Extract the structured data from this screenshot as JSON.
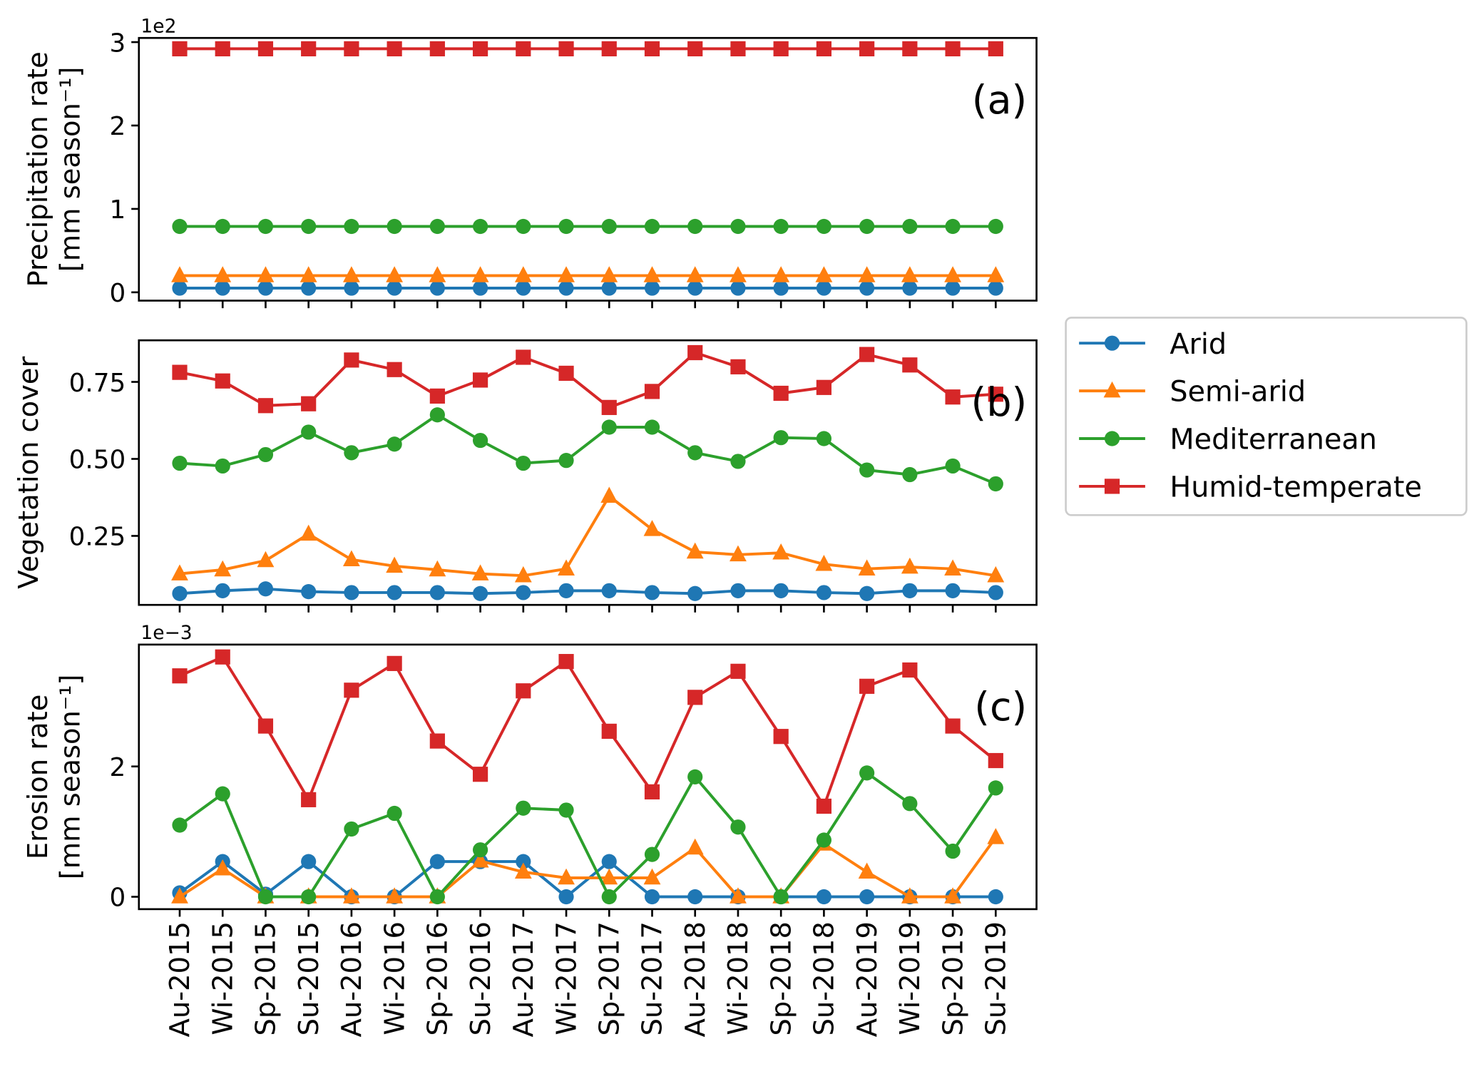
{
  "chart_data": [
    {
      "type": "line",
      "panel_label": "(a)",
      "ylabel": [
        "Precipitation rate",
        "[mm season⁻¹]"
      ],
      "offset_text": "1e2",
      "ylim": [
        -0.1,
        3.05
      ],
      "yticks": [
        0,
        1,
        2,
        3
      ],
      "ytick_labels": [
        "0",
        "1",
        "2",
        "3"
      ],
      "grid": false,
      "series": [
        {
          "name": "Arid",
          "values": [
            0.05,
            0.05,
            0.05,
            0.05,
            0.05,
            0.05,
            0.05,
            0.05,
            0.05,
            0.05,
            0.05,
            0.05,
            0.05,
            0.05,
            0.05,
            0.05,
            0.05,
            0.05,
            0.05,
            0.05
          ]
        },
        {
          "name": "Semi-arid",
          "values": [
            0.2,
            0.2,
            0.2,
            0.2,
            0.2,
            0.2,
            0.2,
            0.2,
            0.2,
            0.2,
            0.2,
            0.2,
            0.2,
            0.2,
            0.2,
            0.2,
            0.2,
            0.2,
            0.2,
            0.2
          ]
        },
        {
          "name": "Mediterranean",
          "values": [
            0.79,
            0.79,
            0.79,
            0.79,
            0.79,
            0.79,
            0.79,
            0.79,
            0.79,
            0.79,
            0.79,
            0.79,
            0.79,
            0.79,
            0.79,
            0.79,
            0.79,
            0.79,
            0.79,
            0.79
          ]
        },
        {
          "name": "Humid-temperate",
          "values": [
            2.92,
            2.92,
            2.92,
            2.92,
            2.92,
            2.92,
            2.92,
            2.92,
            2.92,
            2.92,
            2.92,
            2.92,
            2.92,
            2.92,
            2.92,
            2.92,
            2.92,
            2.92,
            2.92,
            2.92
          ]
        }
      ]
    },
    {
      "type": "line",
      "panel_label": "(b)",
      "ylabel": [
        "Vegetation cover"
      ],
      "offset_text": "",
      "ylim": [
        0.026,
        0.885
      ],
      "yticks": [
        0.25,
        0.5,
        0.75
      ],
      "ytick_labels": [
        "0.25",
        "0.50",
        "0.75"
      ],
      "grid": false,
      "series": [
        {
          "name": "Arid",
          "values": [
            0.063,
            0.072,
            0.078,
            0.069,
            0.066,
            0.066,
            0.066,
            0.063,
            0.066,
            0.072,
            0.072,
            0.066,
            0.063,
            0.072,
            0.072,
            0.066,
            0.063,
            0.072,
            0.072,
            0.066
          ]
        },
        {
          "name": "Semi-arid",
          "values": [
            0.127,
            0.14,
            0.17,
            0.256,
            0.173,
            0.152,
            0.14,
            0.127,
            0.121,
            0.143,
            0.379,
            0.271,
            0.198,
            0.189,
            0.195,
            0.158,
            0.143,
            0.149,
            0.143,
            0.121
          ]
        },
        {
          "name": "Mediterranean",
          "values": [
            0.486,
            0.477,
            0.514,
            0.587,
            0.52,
            0.548,
            0.643,
            0.56,
            0.486,
            0.495,
            0.603,
            0.603,
            0.52,
            0.492,
            0.569,
            0.566,
            0.464,
            0.449,
            0.477,
            0.419
          ]
        },
        {
          "name": "Humid-temperate",
          "values": [
            0.781,
            0.753,
            0.673,
            0.679,
            0.821,
            0.79,
            0.704,
            0.756,
            0.83,
            0.778,
            0.667,
            0.719,
            0.845,
            0.799,
            0.713,
            0.732,
            0.839,
            0.805,
            0.701,
            0.71
          ]
        }
      ]
    },
    {
      "type": "line",
      "panel_label": "(c)",
      "ylabel": [
        "Erosion rate",
        "[mm season⁻¹]"
      ],
      "offset_text": "1e−3",
      "ylim": [
        -0.19,
        3.87
      ],
      "yticks": [
        0,
        2
      ],
      "ytick_labels": [
        "0",
        "2"
      ],
      "grid": false,
      "series": [
        {
          "name": "Arid",
          "values": [
            0.06,
            0.54,
            0.04,
            0.54,
            0,
            0,
            0.54,
            0.54,
            0.54,
            0,
            0.54,
            0,
            0,
            0,
            0,
            0,
            0,
            0,
            0,
            0
          ]
        },
        {
          "name": "Semi-arid",
          "values": [
            0,
            0.43,
            0,
            0,
            0,
            0,
            0,
            0.55,
            0.38,
            0.29,
            0.29,
            0.29,
            0.75,
            0,
            0,
            0.81,
            0.38,
            0,
            0,
            0.91
          ]
        },
        {
          "name": "Mediterranean",
          "values": [
            1.1,
            1.58,
            0,
            0,
            1.04,
            1.28,
            0,
            0.72,
            1.36,
            1.33,
            0,
            0.65,
            1.84,
            1.07,
            0,
            0.87,
            1.9,
            1.43,
            0.7,
            1.67
          ]
        },
        {
          "name": "Humid-temperate",
          "values": [
            3.39,
            3.68,
            2.62,
            1.49,
            3.17,
            3.58,
            2.39,
            1.88,
            3.16,
            3.61,
            2.54,
            1.61,
            3.06,
            3.46,
            2.46,
            1.39,
            3.23,
            3.48,
            2.62,
            2.09
          ]
        }
      ]
    }
  ],
  "categories": [
    "Au-2015",
    "Wi-2015",
    "Sp-2015",
    "Su-2015",
    "Au-2016",
    "Wi-2016",
    "Sp-2016",
    "Su-2016",
    "Au-2017",
    "Wi-2017",
    "Sp-2017",
    "Su-2017",
    "Au-2018",
    "Wi-2018",
    "Sp-2018",
    "Su-2018",
    "Au-2019",
    "Wi-2019",
    "Sp-2019",
    "Su-2019"
  ],
  "legend": {
    "placement": "right",
    "entries": [
      {
        "label": "Arid",
        "color": "#1f77b4",
        "marker": "circle"
      },
      {
        "label": "Semi-arid",
        "color": "#ff7f0e",
        "marker": "triangle"
      },
      {
        "label": "Mediterranean",
        "color": "#2ca02c",
        "marker": "circle"
      },
      {
        "label": "Humid-temperate",
        "color": "#d62728",
        "marker": "square"
      }
    ]
  }
}
